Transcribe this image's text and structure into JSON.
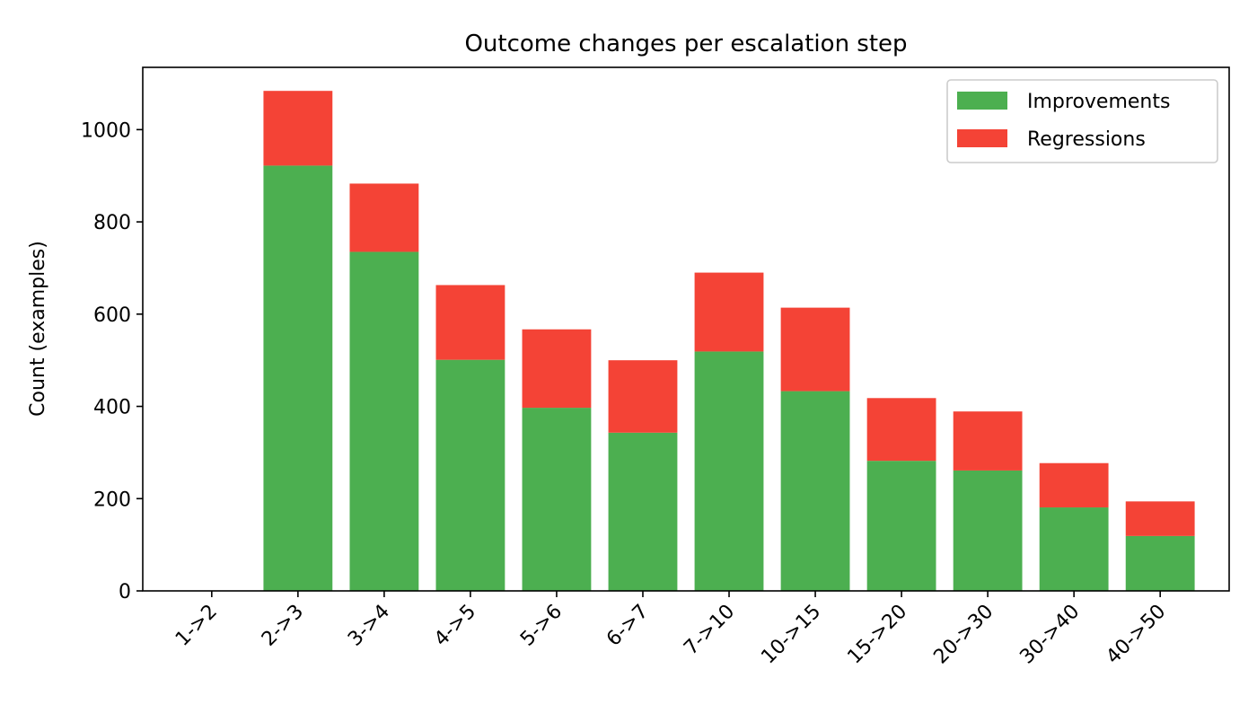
{
  "chart_data": {
    "type": "bar",
    "stacked": true,
    "title": "Outcome changes per escalation step",
    "xlabel": "",
    "ylabel": "Count (examples)",
    "ylim": [
      0,
      1135
    ],
    "yticks": [
      0,
      200,
      400,
      600,
      800,
      1000
    ],
    "categories": [
      "1->2",
      "2->3",
      "3->4",
      "4->5",
      "5->6",
      "6->7",
      "7->10",
      "10->15",
      "15->20",
      "20->30",
      "30->40",
      "40->50"
    ],
    "series": [
      {
        "name": "Improvements",
        "color": "#4caf50",
        "values": [
          0,
          922,
          735,
          501,
          397,
          343,
          519,
          433,
          282,
          261,
          181,
          119
        ]
      },
      {
        "name": "Regressions",
        "color": "#f44336",
        "values": [
          0,
          162,
          148,
          162,
          170,
          157,
          171,
          181,
          136,
          128,
          96,
          75
        ]
      }
    ],
    "legend_position": "top-right",
    "grid": false
  }
}
